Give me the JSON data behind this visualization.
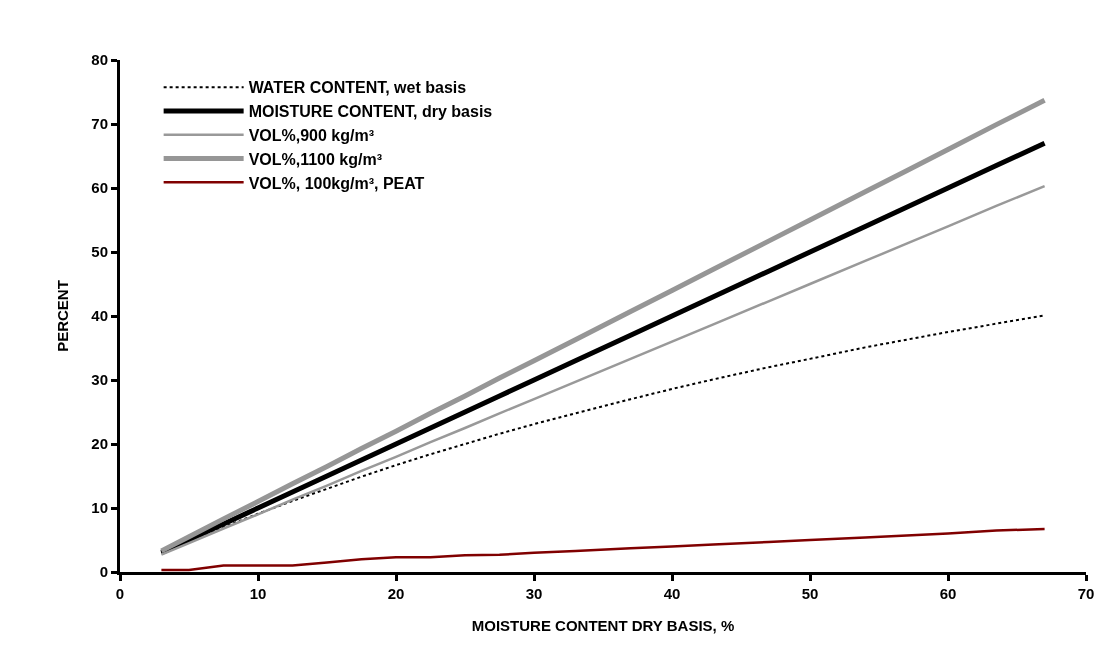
{
  "chart_data": {
    "type": "line",
    "xlabel": "MOISTURE CONTENT DRY BASIS, %",
    "ylabel": "PERCENT",
    "x": [
      3,
      5,
      7.5,
      10,
      12.5,
      15,
      17.5,
      20,
      22.5,
      25,
      27.5,
      30,
      33,
      37,
      40,
      43,
      47,
      50,
      54,
      57,
      60,
      63.5,
      67
    ],
    "series": [
      {
        "name": "WATER CONTENT, wet basis",
        "color": "#000000",
        "line_style": "dotted",
        "values": [
          2.9,
          4.8,
          7.0,
          9.1,
          11.1,
          13.0,
          14.9,
          16.7,
          18.4,
          20.0,
          21.6,
          23.1,
          24.8,
          27.0,
          28.6,
          30.1,
          32.0,
          33.3,
          35.1,
          36.3,
          37.5,
          38.8,
          40.1
        ]
      },
      {
        "name": "MOISTURE CONTENT, dry basis",
        "color": "#000000",
        "line_style": "solid",
        "values": [
          3,
          5,
          7.5,
          10,
          12.5,
          15,
          17.5,
          20,
          22.5,
          25,
          27.5,
          30,
          33,
          37,
          40,
          43,
          47,
          50,
          54,
          57,
          60,
          63.5,
          67
        ]
      },
      {
        "name": "VOL%,900 kg/m³",
        "color": "#999999",
        "line_style": "solid",
        "values": [
          2.7,
          4.5,
          6.8,
          9.0,
          11.3,
          13.5,
          15.8,
          18.0,
          20.3,
          22.5,
          24.8,
          27.0,
          29.7,
          33.3,
          36.0,
          38.7,
          42.3,
          45.0,
          48.6,
          51.3,
          54.0,
          57.2,
          60.3
        ]
      },
      {
        "name": "VOL%,1100 kg/m³",
        "color": "#969696",
        "line_style": "solid",
        "values": [
          3.3,
          5.5,
          8.3,
          11.0,
          13.8,
          16.5,
          19.3,
          22.0,
          24.8,
          27.5,
          30.3,
          33.0,
          36.3,
          40.7,
          44.0,
          47.3,
          51.7,
          55.0,
          59.4,
          62.7,
          66.0,
          69.9,
          73.7
        ]
      },
      {
        "name": "VOL%, 100kg/m³, PEAT",
        "color": "#800000",
        "line_style": "solid",
        "values": [
          0.3,
          0.3,
          1.0,
          1.0,
          1.0,
          1.5,
          2.0,
          2.3,
          2.3,
          2.6,
          2.7,
          3.0,
          3.3,
          3.7,
          4.0,
          4.3,
          4.7,
          5.0,
          5.4,
          5.7,
          6.0,
          6.5,
          6.7
        ]
      }
    ],
    "xlim": [
      0,
      70
    ],
    "xticks": [
      0,
      10,
      20,
      30,
      40,
      50,
      60,
      70
    ],
    "ylim": [
      0,
      80
    ],
    "yticks": [
      0,
      10,
      20,
      30,
      40,
      50,
      60,
      70,
      80
    ],
    "grid": false,
    "legend": "top left",
    "marker": "none"
  }
}
